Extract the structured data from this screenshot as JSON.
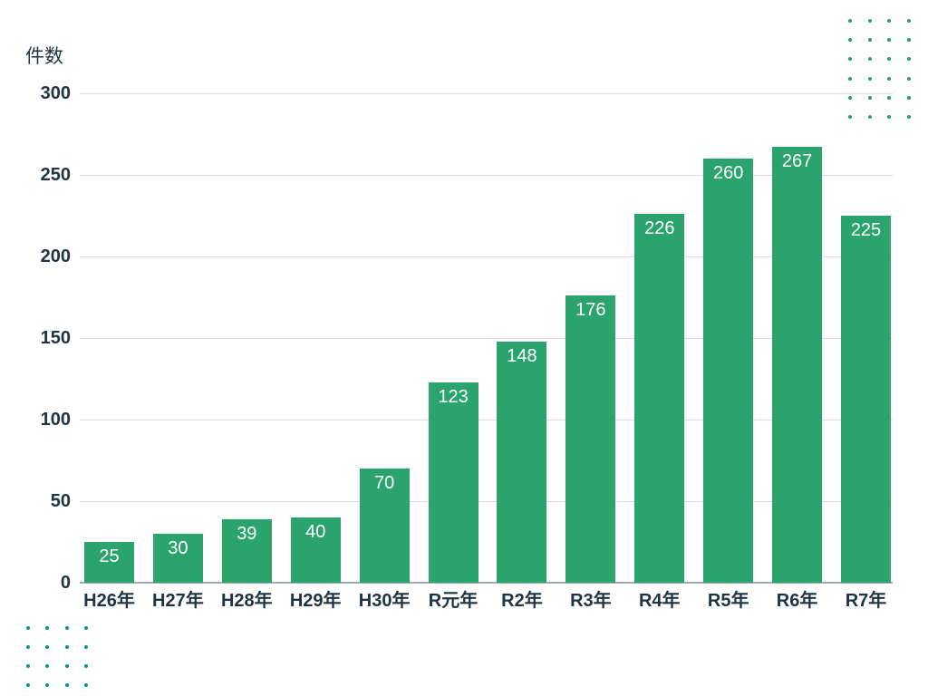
{
  "chart_data": {
    "type": "bar",
    "categories": [
      "H26年",
      "H27年",
      "H28年",
      "H29年",
      "H30年",
      "R元年",
      "R2年",
      "R3年",
      "R4年",
      "R5年",
      "R6年",
      "R7年"
    ],
    "values": [
      25,
      30,
      39,
      40,
      70,
      123,
      148,
      176,
      226,
      260,
      267,
      225
    ],
    "title": "",
    "xlabel": "",
    "ylabel": "件数",
    "ylim": [
      0,
      300
    ],
    "yticks": [
      0,
      50,
      100,
      150,
      200,
      250,
      300
    ],
    "grid": true,
    "legend": "none",
    "bar_color": "#2aa36c",
    "value_label_color": "#ffffff",
    "axis_text_color": "#1d3444",
    "gridline_color": "#dadde0",
    "baseline_color": "#a3aaaf"
  },
  "decor": {
    "top_right_dots": {
      "name": "dot-grid-top-right",
      "color": "#2aa05f",
      "cols": 4,
      "rows": 6
    },
    "bottom_left_dots": {
      "name": "dot-grid-bottom-left",
      "color": "#0d8f9b",
      "cols": 4,
      "rows": 4
    }
  }
}
